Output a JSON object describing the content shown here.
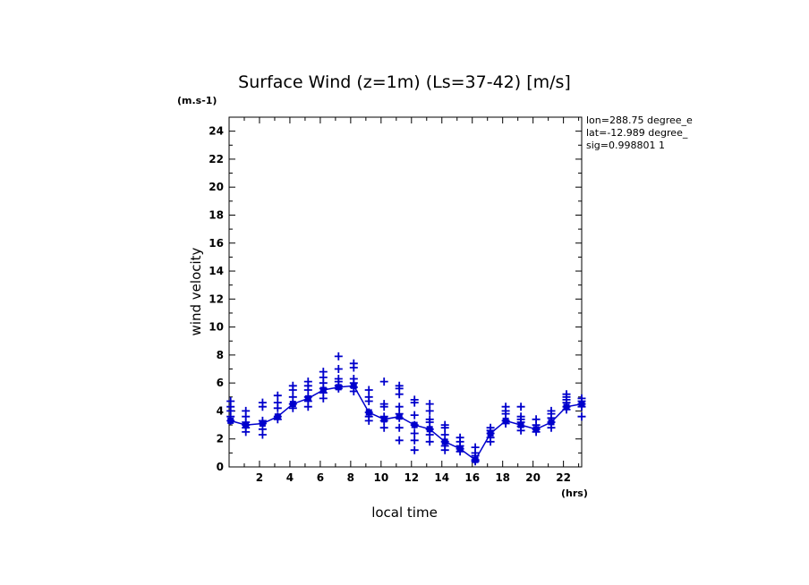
{
  "chart_data": {
    "type": "scatter",
    "title": "Surface Wind (z=1m) (Ls=37-42) [m/s]",
    "xlabel": "local time",
    "ylabel": "wind velocity",
    "x_unit": "(hrs)",
    "y_unit": "(m.s-1)",
    "xlim": [
      0,
      23.2
    ],
    "ylim": [
      0,
      25
    ],
    "x_ticks": [
      2,
      4,
      6,
      8,
      10,
      12,
      14,
      16,
      18,
      20,
      22
    ],
    "y_ticks": [
      0,
      2,
      4,
      6,
      8,
      10,
      12,
      14,
      16,
      18,
      20,
      22,
      24
    ],
    "grid": false,
    "color": "#0000cc",
    "info_lines": [
      "lon=288.75 degree_e",
      "lat=-12.989 degree_",
      "sig=0.998801 1"
    ],
    "series": [
      {
        "style": "line",
        "x": [
          0.1,
          1.1,
          2.2,
          3.2,
          4.2,
          5.2,
          6.2,
          7.2,
          8.2,
          9.2,
          10.2,
          11.2,
          12.2,
          13.2,
          14.2,
          15.2,
          16.2,
          17.2,
          18.2,
          19.2,
          20.2,
          21.2,
          22.2,
          23.2
        ],
        "y": [
          3.3,
          3.0,
          3.1,
          3.6,
          4.5,
          4.9,
          5.5,
          5.7,
          5.8,
          3.9,
          3.4,
          3.6,
          3.0,
          2.7,
          1.8,
          1.3,
          0.5,
          2.4,
          3.3,
          3.0,
          2.7,
          3.2,
          4.3,
          4.5
        ]
      },
      {
        "style": "markers",
        "marker": "+",
        "points": [
          [
            0.1,
            [
              3.3,
              3.6,
              4.0,
              4.3,
              4.7
            ]
          ],
          [
            1.1,
            [
              2.5,
              2.8,
              3.0,
              3.2,
              3.6,
              4.0
            ]
          ],
          [
            2.2,
            [
              2.3,
              2.7,
              3.1,
              3.3,
              4.3,
              4.6
            ]
          ],
          [
            3.2,
            [
              3.4,
              3.6,
              4.2,
              4.6,
              5.1
            ]
          ],
          [
            4.2,
            [
              4.2,
              4.5,
              5.0,
              5.5,
              5.8
            ]
          ],
          [
            5.2,
            [
              4.3,
              4.7,
              5.0,
              5.5,
              5.8,
              6.1
            ]
          ],
          [
            6.2,
            [
              4.9,
              5.3,
              5.6,
              6.0,
              6.4,
              6.8
            ]
          ],
          [
            7.2,
            [
              5.6,
              5.8,
              6.1,
              6.3,
              7.0,
              7.9
            ]
          ],
          [
            8.2,
            [
              5.4,
              5.7,
              6.0,
              6.3,
              7.1,
              7.4
            ]
          ],
          [
            9.2,
            [
              3.3,
              3.6,
              3.9,
              4.7,
              5.0,
              5.5
            ]
          ],
          [
            10.2,
            [
              2.8,
              3.3,
              3.6,
              4.3,
              4.5,
              6.1
            ]
          ],
          [
            11.2,
            [
              1.9,
              2.8,
              3.5,
              3.8,
              4.3,
              5.2,
              5.6,
              5.8
            ]
          ],
          [
            12.2,
            [
              1.2,
              1.9,
              2.4,
              3.0,
              3.7,
              4.6,
              4.8
            ]
          ],
          [
            13.2,
            [
              1.8,
              2.3,
              2.7,
              3.2,
              3.4,
              4.0,
              4.5
            ]
          ],
          [
            14.2,
            [
              1.2,
              1.5,
              1.8,
              2.3,
              2.8,
              3.0
            ]
          ],
          [
            15.2,
            [
              1.1,
              1.3,
              1.5,
              1.8,
              2.1
            ]
          ],
          [
            16.2,
            [
              0.4,
              0.5,
              0.8,
              1.0,
              1.4
            ]
          ],
          [
            17.2,
            [
              1.8,
              2.1,
              2.4,
              2.6,
              2.8
            ]
          ],
          [
            18.2,
            [
              3.1,
              3.3,
              3.8,
              4.0,
              4.3
            ]
          ],
          [
            19.2,
            [
              2.6,
              2.9,
              3.2,
              3.4,
              3.6,
              4.3
            ]
          ],
          [
            20.2,
            [
              2.5,
              2.7,
              3.0,
              3.4
            ]
          ],
          [
            21.2,
            [
              2.8,
              3.2,
              3.5,
              3.8,
              4.0
            ]
          ],
          [
            22.2,
            [
              4.1,
              4.3,
              4.6,
              4.8,
              5.0,
              5.2
            ]
          ],
          [
            23.2,
            [
              3.6,
              4.3,
              4.5,
              4.7,
              4.9
            ]
          ]
        ]
      }
    ]
  }
}
